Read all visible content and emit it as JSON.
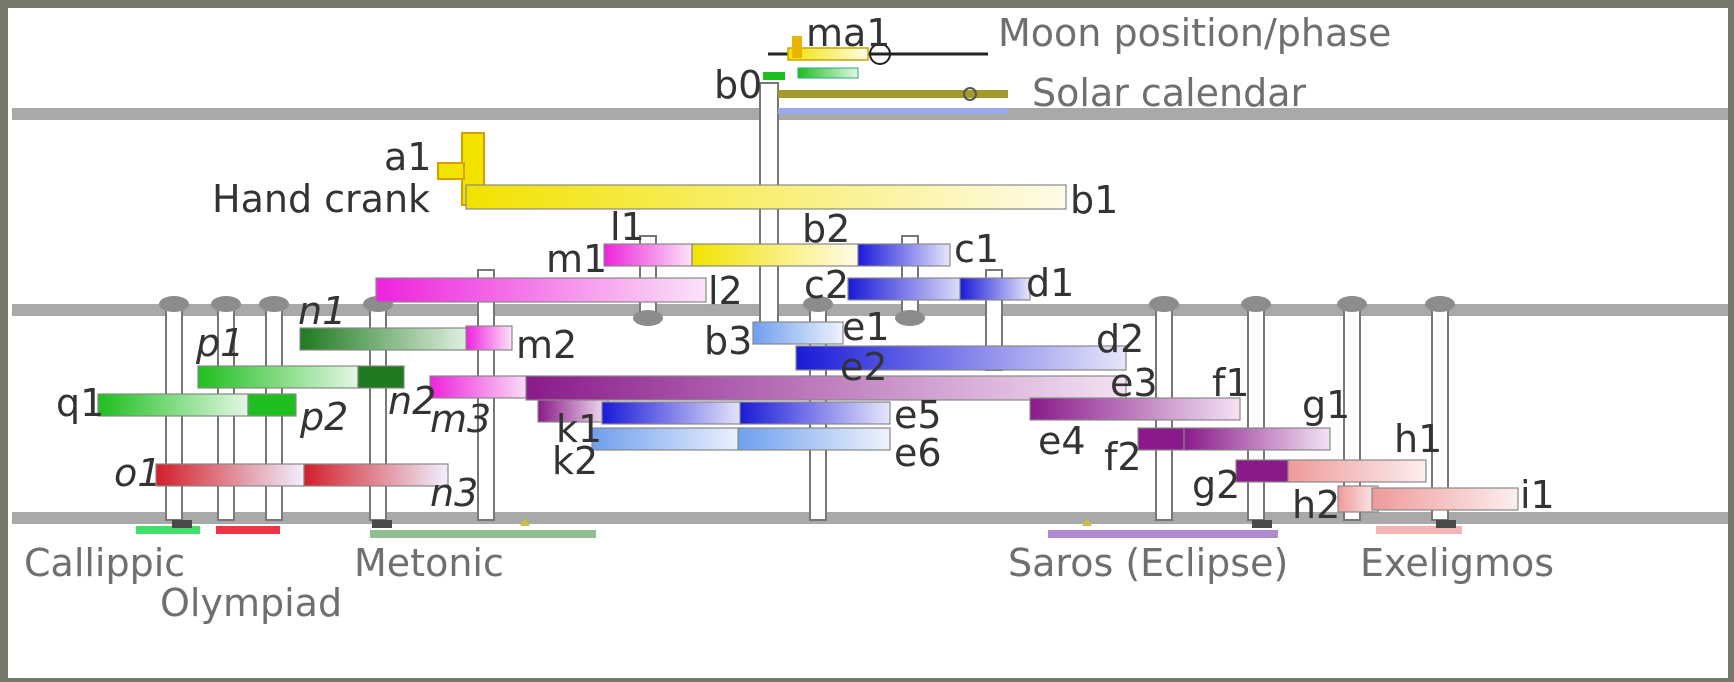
{
  "diagram": {
    "captions": [
      {
        "id": "moon",
        "text": "Moon position/phase"
      },
      {
        "id": "solar",
        "text": "Solar calendar"
      },
      {
        "id": "crank",
        "text": "Hand crank"
      },
      {
        "id": "callippic",
        "text": "Callippic"
      },
      {
        "id": "olympiad",
        "text": "Olympiad"
      },
      {
        "id": "metonic",
        "text": "Metonic"
      },
      {
        "id": "saros",
        "text": "Saros (Eclipse)"
      },
      {
        "id": "exeligmos",
        "text": "Exeligmos"
      }
    ],
    "gear_labels": [
      "ma1",
      "b0",
      "a1",
      "b1",
      "l1",
      "b2",
      "c1",
      "m1",
      "c2",
      "d1",
      "l2",
      "n1",
      "p1",
      "m2",
      "b3",
      "e1",
      "d2",
      "e2",
      "e3",
      "f1",
      "q1",
      "p2",
      "n2",
      "m3",
      "k1",
      "e5",
      "g1",
      "e4",
      "f2",
      "h1",
      "k2",
      "e6",
      "o1",
      "g2",
      "n3",
      "h2",
      "i1"
    ],
    "colors": {
      "crank": "#f2e200",
      "magenta": "#ee22dd",
      "green": "#1fbf1f",
      "dark_green": "#1f7a1f",
      "blue": "#1a1ad8",
      "light_blue": "#6f9fee",
      "purple": "#8a1a8a",
      "red": "#d21f2a",
      "pink": "#ee9a9a",
      "olive": "#a39a2a",
      "plate_gray": "#a9a9a9"
    }
  }
}
